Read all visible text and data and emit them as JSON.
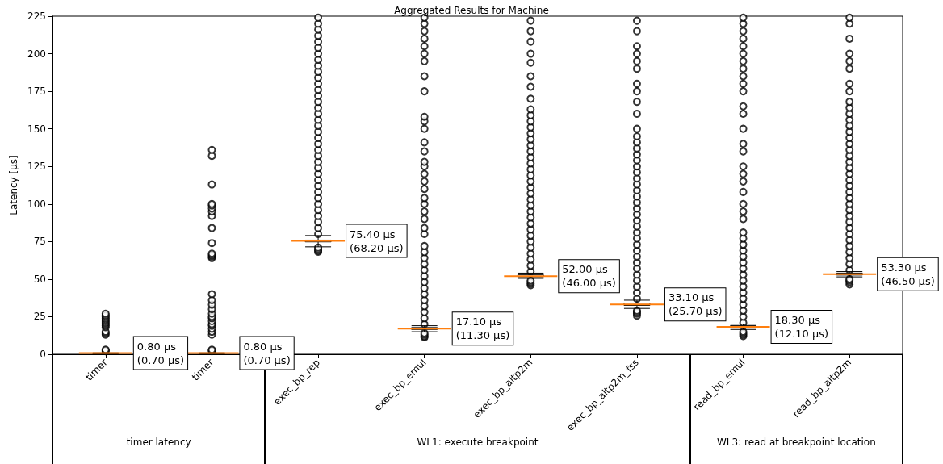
{
  "chart_data": {
    "type": "box",
    "title": "Aggregated Results for Machine",
    "ylabel": "Latency [µs]",
    "categories": [
      "timer",
      "timer",
      "exec_bp_rep",
      "exec_bp_emul",
      "exec_bp_altp2m",
      "exec_bp_altp2m_fss",
      "read_bp_emul",
      "read_bp_altp2m"
    ],
    "boxes": [
      {
        "low": 0.7,
        "q1": 0.75,
        "median": 0.8,
        "q3": 0.85,
        "high": 0.9,
        "outliers": [
          2,
          2.5,
          3,
          13,
          14,
          15,
          18,
          19,
          20,
          21,
          22,
          23,
          24,
          25,
          26,
          27
        ]
      },
      {
        "low": 0.7,
        "q1": 0.75,
        "median": 0.8,
        "q3": 0.85,
        "high": 0.9,
        "outliers": [
          2,
          2.5,
          3,
          13,
          15,
          17,
          19,
          20,
          22,
          24,
          25,
          27,
          30,
          33,
          36,
          40,
          64,
          65,
          66,
          67,
          74,
          84,
          92,
          95,
          97,
          99,
          100,
          113,
          132,
          136
        ]
      },
      {
        "low": 71.5,
        "q1": 74.8,
        "median": 75.4,
        "q3": 76,
        "high": 79,
        "outliers": [
          68.2,
          69,
          70,
          71,
          80,
          84,
          88,
          92,
          96,
          100,
          104,
          108,
          112,
          116,
          120,
          124,
          128,
          132,
          136,
          140,
          144,
          148,
          152,
          156,
          160,
          164,
          168,
          172,
          176,
          180,
          184,
          188,
          192,
          196,
          200,
          204,
          208,
          212,
          216,
          220,
          224
        ]
      },
      {
        "low": 15,
        "q1": 16.5,
        "median": 17.1,
        "q3": 17.8,
        "high": 19,
        "outliers": [
          11.3,
          12,
          13,
          14,
          20,
          24,
          28,
          32,
          36,
          40,
          44,
          48,
          52,
          56,
          60,
          64,
          68,
          72,
          80,
          84,
          90,
          95,
          100,
          104,
          110,
          115,
          120,
          125,
          128,
          135,
          141,
          150,
          155,
          158,
          175,
          185,
          195,
          200,
          205,
          210,
          215,
          220,
          224
        ]
      },
      {
        "low": 50.5,
        "q1": 51.5,
        "median": 52,
        "q3": 52.8,
        "high": 54,
        "outliers": [
          46,
          47,
          48,
          49,
          55,
          59,
          63,
          67,
          71,
          75,
          79,
          83,
          87,
          91,
          95,
          99,
          103,
          107,
          111,
          115,
          119,
          123,
          127,
          131,
          135,
          139,
          143,
          147,
          151,
          155,
          159,
          163,
          170,
          178,
          185,
          194,
          200,
          208,
          215,
          222
        ]
      },
      {
        "low": 30.5,
        "q1": 32.5,
        "median": 33.1,
        "q3": 34,
        "high": 36,
        "outliers": [
          25.7,
          27,
          28,
          29,
          37,
          41,
          45,
          49,
          53,
          57,
          61,
          65,
          69,
          73,
          77,
          81,
          85,
          89,
          93,
          97,
          101,
          105,
          109,
          113,
          117,
          121,
          125,
          129,
          133,
          137,
          141,
          145,
          150,
          160,
          168,
          175,
          180,
          190,
          195,
          200,
          205,
          215,
          222
        ]
      },
      {
        "low": 16.5,
        "q1": 17.7,
        "median": 18.3,
        "q3": 19,
        "high": 20,
        "outliers": [
          12.1,
          13,
          14,
          15,
          21,
          25,
          29,
          33,
          37,
          41,
          45,
          49,
          53,
          57,
          61,
          65,
          69,
          73,
          77,
          81,
          90,
          95,
          100,
          108,
          115,
          120,
          125,
          135,
          140,
          150,
          160,
          165,
          175,
          180,
          185,
          190,
          195,
          200,
          205,
          210,
          215,
          220,
          224
        ]
      },
      {
        "low": 51.5,
        "q1": 52.7,
        "median": 53.3,
        "q3": 54,
        "high": 55,
        "outliers": [
          46.5,
          48,
          49,
          50,
          56,
          60,
          64,
          68,
          72,
          76,
          80,
          84,
          88,
          92,
          96,
          100,
          104,
          108,
          112,
          116,
          120,
          124,
          128,
          132,
          136,
          140,
          144,
          148,
          152,
          156,
          160,
          164,
          168,
          175,
          180,
          190,
          195,
          200,
          210,
          220,
          224
        ]
      }
    ],
    "value_labels": [
      "0.80 µs\n(0.70 µs)",
      "0.80 µs\n(0.70 µs)",
      "75.40 µs\n(68.20 µs)",
      "17.10 µs\n(11.30 µs)",
      "52.00 µs\n(46.00 µs)",
      "33.10 µs\n(25.70 µs)",
      "18.30 µs\n(12.10 µs)",
      "53.30 µs\n(46.50 µs)"
    ],
    "annotations": [
      "timer latency",
      "WL1: execute breakpoint",
      "WL3: read at breakpoint location"
    ],
    "ylim": [
      0,
      225
    ],
    "yticks": [
      0,
      25,
      50,
      75,
      100,
      125,
      150,
      175,
      200,
      225
    ],
    "grid": false,
    "marker": "circle"
  }
}
